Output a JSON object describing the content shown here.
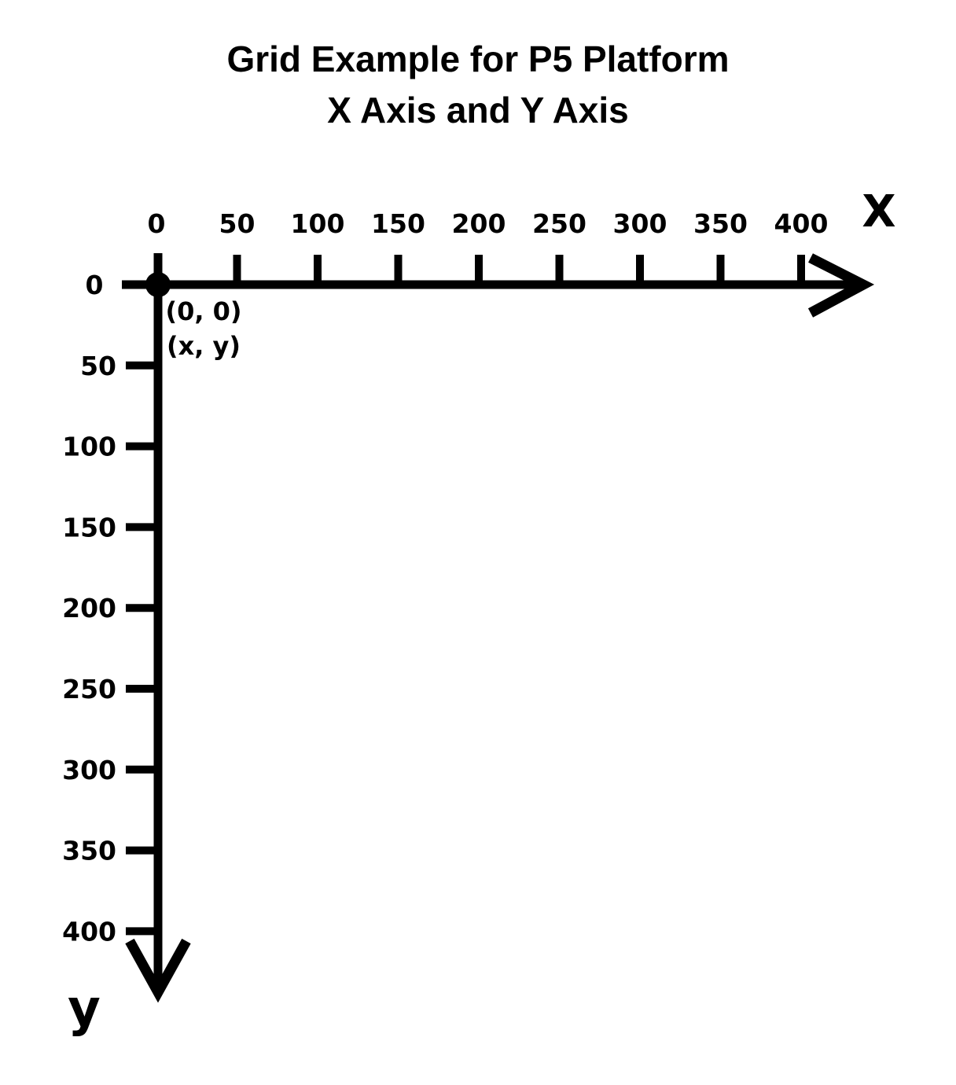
{
  "title": {
    "line1": "Grid Example for P5 Platform",
    "line2": "X Axis and Y Axis"
  },
  "axes": {
    "x_letter": "X",
    "y_letter": "y",
    "x_ticks": [
      "0",
      "50",
      "100",
      "150",
      "200",
      "250",
      "300",
      "350",
      "400"
    ],
    "y_ticks": [
      "0",
      "50",
      "100",
      "150",
      "200",
      "250",
      "300",
      "350",
      "400"
    ]
  },
  "origin": {
    "coords": "(0, 0)",
    "label": "(x, y)"
  },
  "colors": {
    "ink": "#000000",
    "background": "#ffffff"
  }
}
